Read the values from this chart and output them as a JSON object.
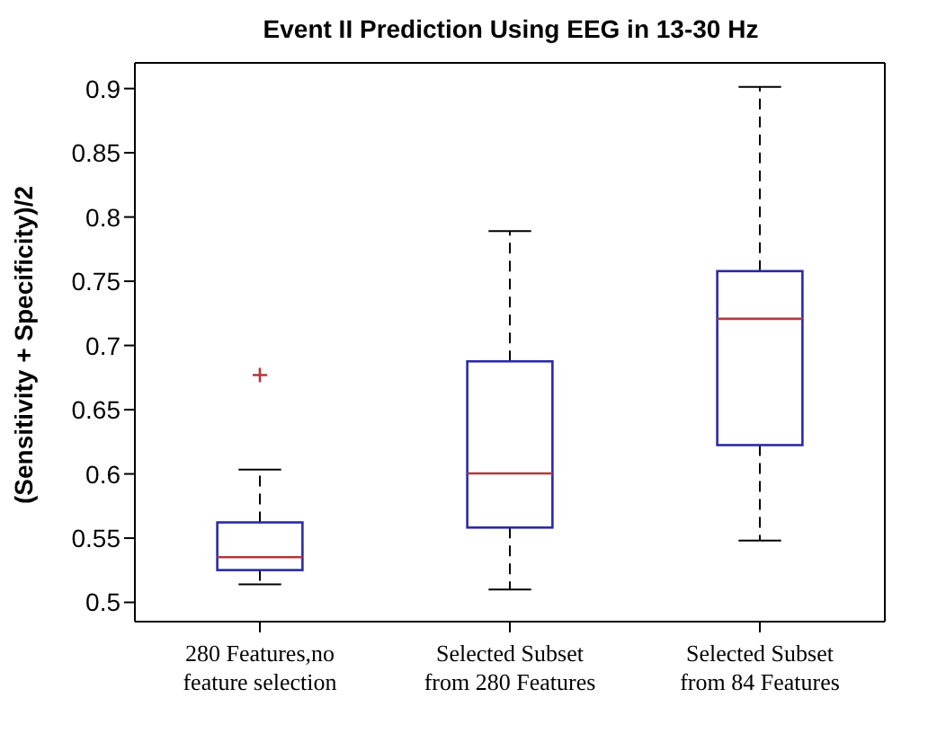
{
  "chart_data": {
    "type": "box",
    "title": "Event II Prediction Using EEG in 13-30 Hz",
    "ylabel": "(Sensitivity + Specificity)/2",
    "categories": [
      "280 Features,no feature selection",
      "Selected Subset from 280 Features",
      "Selected Subset from 84 Features"
    ],
    "series": [
      {
        "color": "#2a2aa8",
        "boxes": [
          {
            "low": 0.514,
            "q1": 0.525,
            "median": 0.535,
            "q3": 0.562,
            "high": 0.603,
            "outliers": [
              0.677
            ]
          },
          {
            "low": 0.51,
            "q1": 0.558,
            "median": 0.6,
            "q3": 0.687,
            "high": 0.788
          },
          {
            "low": 0.548,
            "q1": 0.622,
            "median": 0.72,
            "q3": 0.757,
            "high": 0.9
          }
        ]
      }
    ],
    "ylim": [
      0.485,
      0.92
    ],
    "yticks": [
      0.5,
      0.55,
      0.6,
      0.65,
      0.7,
      0.75,
      0.8,
      0.85,
      0.9
    ]
  }
}
